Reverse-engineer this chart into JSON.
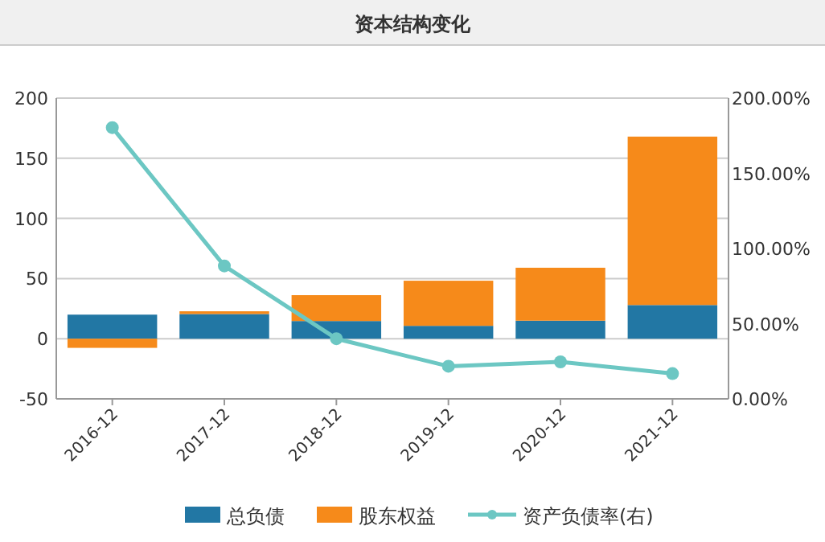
{
  "chart_data": {
    "type": "bar",
    "title": "资本结构变化",
    "categories": [
      "2016-12",
      "2017-12",
      "2018-12",
      "2019-12",
      "2020-12",
      "2021-12"
    ],
    "stacked": true,
    "series": [
      {
        "name": "总负债",
        "color": "#2277a4",
        "values": [
          20,
          20.5,
          14.7,
          10.7,
          15,
          28
        ]
      },
      {
        "name": "股东权益",
        "color": "#f68a1a",
        "values": [
          -7.6,
          2.3,
          21.5,
          37.5,
          44,
          140
        ]
      },
      {
        "name": "资产负债率(右)",
        "type": "line",
        "axis": "y2",
        "color": "#6cc7c3",
        "marker": "circle",
        "values": [
          180.4,
          88.4,
          40,
          21.7,
          24.6,
          16.8
        ]
      }
    ],
    "ylim": [
      -50,
      200
    ],
    "yticks": [
      -50,
      0,
      50,
      100,
      150,
      200
    ],
    "y2lim": [
      0,
      200
    ],
    "y2ticks": [
      {
        "value": 0,
        "label": "0.00%"
      },
      {
        "value": 50,
        "label": "50.00%"
      },
      {
        "value": 100,
        "label": "100.00%"
      },
      {
        "value": 150,
        "label": "150.00%"
      },
      {
        "value": 200,
        "label": "200.00%"
      }
    ],
    "grid": "y",
    "legend": "bottom"
  }
}
